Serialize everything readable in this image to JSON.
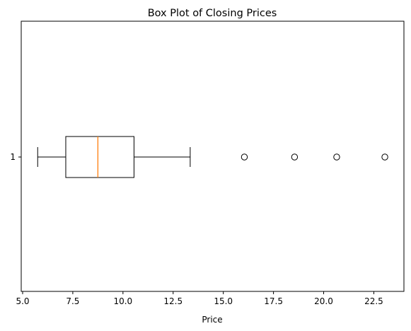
{
  "chart_data": {
    "type": "boxplot",
    "orientation": "horizontal",
    "title": "Box Plot of Closing Prices",
    "xlabel": "Price",
    "ylabel": "",
    "xlim": [
      4.93,
      24.0
    ],
    "xticks": [
      "5.0",
      "7.5",
      "10.0",
      "12.5",
      "15.0",
      "17.5",
      "20.0",
      "22.5"
    ],
    "xtick_values": [
      5.0,
      7.5,
      10.0,
      12.5,
      15.0,
      17.5,
      20.0,
      22.5
    ],
    "yticks": [
      "1"
    ],
    "grid": false,
    "series": [
      {
        "category": "1",
        "whisker_low": 5.75,
        "q1": 7.15,
        "median": 8.75,
        "q3": 10.55,
        "whisker_high": 13.35,
        "outliers": [
          16.05,
          18.55,
          20.65,
          23.05
        ]
      }
    ],
    "colors": {
      "box": "#000000",
      "median": "#ff7f0e",
      "outlier": "#000000"
    }
  }
}
